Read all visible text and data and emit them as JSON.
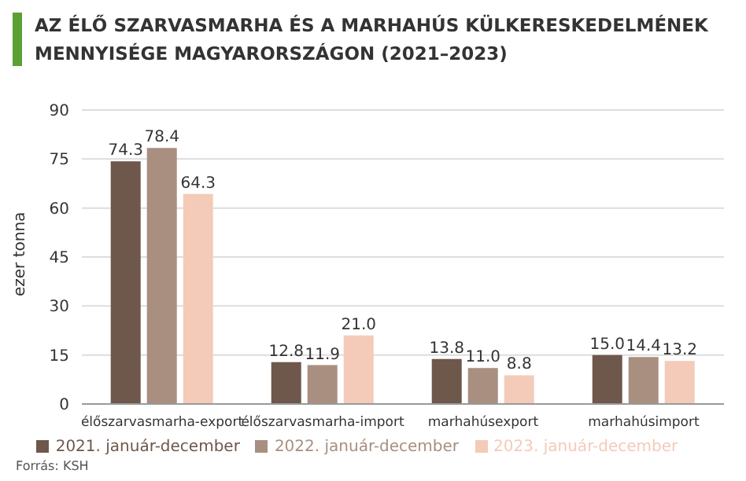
{
  "chart_data": {
    "type": "bar",
    "title": "AZ ÉLŐ SZARVASMARHA ÉS A MARHAHÚS KÜLKERESKEDELMÉNEK MENNYISÉGE MAGYARORSZÁGON (2021–2023)",
    "ylabel": "ezer tonna",
    "categories": [
      "élőszarvasmarha-export",
      "élőszarvasmarha-import",
      "marhahúsexport",
      "marhahúsimport"
    ],
    "series": [
      {
        "name": "2021. január-december",
        "color": "#6e584b",
        "values": [
          74.3,
          12.8,
          13.8,
          15.0
        ],
        "value_labels": [
          "74.3",
          "12.8",
          "13.8",
          "15.0"
        ]
      },
      {
        "name": "2022. január-december",
        "color": "#a88f80",
        "values": [
          78.4,
          11.9,
          11.0,
          14.4
        ],
        "value_labels": [
          "78.4",
          "11.9",
          "11.0",
          "14.4"
        ]
      },
      {
        "name": "2023. január-december",
        "color": "#f3cbb8",
        "values": [
          64.3,
          21.0,
          8.8,
          13.2
        ],
        "value_labels": [
          "64.3",
          "21.0",
          "8.8",
          "13.2"
        ]
      }
    ],
    "ylim": [
      0,
      90
    ],
    "yticks": [
      0,
      15,
      30,
      45,
      60,
      75,
      90
    ],
    "grid": "y",
    "legend": "bottom",
    "annotations": [
      "Forrás: KSH"
    ]
  }
}
